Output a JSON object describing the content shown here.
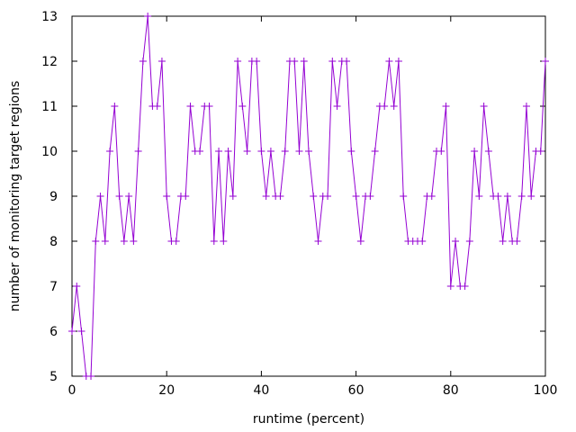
{
  "chart_data": {
    "type": "line",
    "title": "",
    "xlabel": "runtime (percent)",
    "ylabel": "number of monitoring target regions",
    "xlim": [
      0,
      100
    ],
    "ylim": [
      5,
      13
    ],
    "xticks": [
      0,
      20,
      40,
      60,
      80,
      100
    ],
    "yticks": [
      5,
      6,
      7,
      8,
      9,
      10,
      11,
      12,
      13
    ],
    "grid": false,
    "legend": "none",
    "marker": "plus",
    "series_color": "#9400D3",
    "series": [
      {
        "x": [
          0,
          1,
          2,
          3,
          4,
          5,
          6,
          7,
          8,
          9,
          10,
          11,
          12,
          13,
          14,
          15,
          16,
          17,
          18,
          19,
          20,
          21,
          22,
          23,
          24,
          25,
          26,
          27,
          28,
          29,
          30,
          31,
          32,
          33,
          34,
          35,
          36,
          37,
          38,
          39,
          40,
          41,
          42,
          43,
          44,
          45,
          46,
          47,
          48,
          49,
          50,
          51,
          52,
          53,
          54,
          55,
          56,
          57,
          58,
          59,
          60,
          61,
          62,
          63,
          64,
          65,
          66,
          67,
          68,
          69,
          70,
          71,
          72,
          73,
          74,
          75,
          76,
          77,
          78,
          79,
          80,
          81,
          82,
          83,
          84,
          85,
          86,
          87,
          88,
          89,
          90,
          91,
          92,
          93,
          94,
          95,
          96,
          97,
          98,
          99,
          100
        ],
        "y": [
          6,
          7,
          6,
          5,
          5,
          8,
          9,
          8,
          10,
          11,
          9,
          8,
          9,
          8,
          10,
          12,
          13,
          11,
          11,
          12,
          9,
          8,
          8,
          9,
          9,
          11,
          10,
          10,
          11,
          11,
          8,
          10,
          8,
          10,
          9,
          12,
          11,
          10,
          12,
          12,
          10,
          9,
          10,
          9,
          9,
          10,
          12,
          12,
          10,
          12,
          10,
          9,
          8,
          9,
          9,
          12,
          11,
          12,
          12,
          10,
          9,
          8,
          9,
          9,
          10,
          11,
          11,
          12,
          11,
          12,
          9,
          8,
          8,
          8,
          8,
          9,
          9,
          10,
          10,
          11,
          7,
          8,
          7,
          7,
          8,
          10,
          9,
          11,
          10,
          9,
          9,
          8,
          9,
          8,
          8,
          9,
          11,
          9,
          10,
          10,
          12
        ]
      }
    ]
  }
}
